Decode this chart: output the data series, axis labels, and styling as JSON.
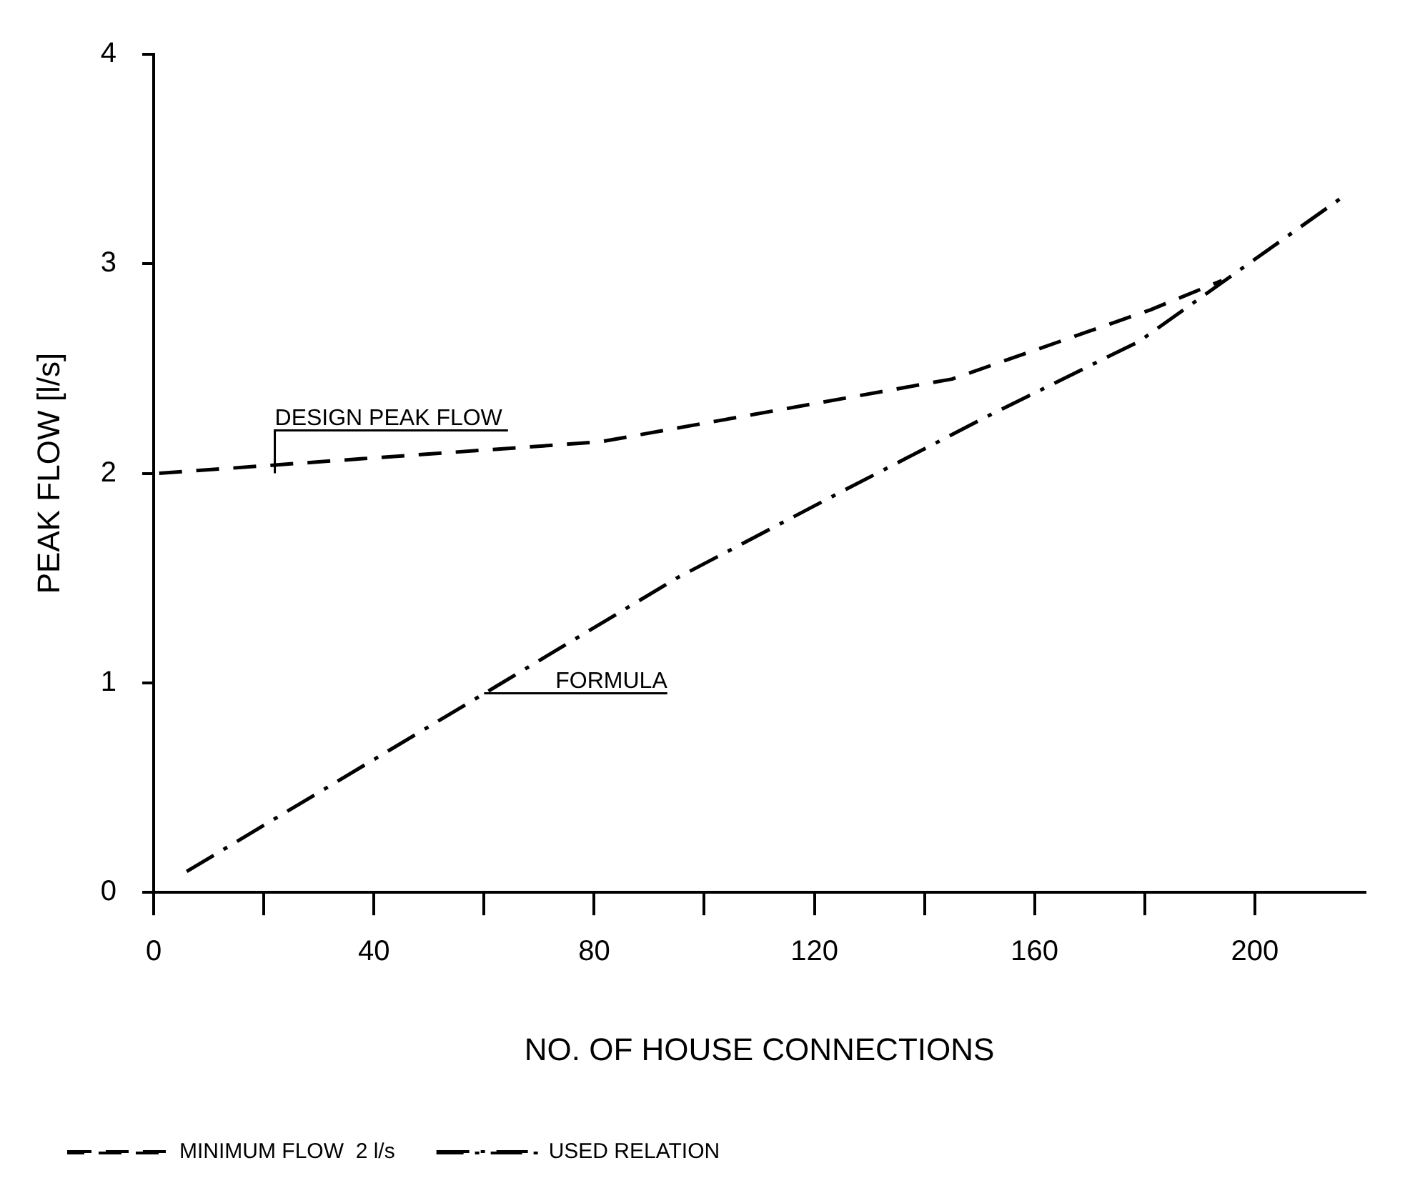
{
  "chart_data": {
    "type": "line",
    "xlabel": "NO. OF HOUSE CONNECTIONS",
    "ylabel": "PEAK FLOW [l/s]",
    "xlim": [
      0,
      220
    ],
    "ylim": [
      0,
      4
    ],
    "xticks": [
      0,
      {
        "value": 20,
        "label": null
      },
      40,
      {
        "value": 60,
        "label": null
      },
      80,
      {
        "value": 100,
        "label": null
      },
      120,
      {
        "value": 140,
        "label": null
      },
      160,
      {
        "value": 180,
        "label": null
      },
      200
    ],
    "yticks": [
      0,
      1,
      2,
      3,
      4
    ],
    "grid": false,
    "legend": "bottom",
    "marker": "none",
    "series": [
      {
        "name": "MINIMUM FLOW  2 l/s",
        "color": "#000000",
        "line_style": "dashed",
        "x": [
          1,
          38,
          81,
          145,
          181,
          194
        ],
        "values": [
          2.0,
          2.07,
          2.15,
          2.45,
          2.78,
          2.92
        ]
      },
      {
        "name": "USED RELATION",
        "color": "#000000",
        "line_style": "dashdot",
        "x": [
          6,
          62,
          95,
          124,
          152,
          179,
          216
        ],
        "values": [
          0.1,
          0.98,
          1.5,
          1.9,
          2.28,
          2.63,
          3.32
        ]
      }
    ],
    "annotations": [
      {
        "text": "DESIGN PEAK FLOW",
        "x": 22,
        "y": 2.0
      },
      {
        "text": "FORMULA",
        "x": 60,
        "y": 0.95
      }
    ]
  }
}
